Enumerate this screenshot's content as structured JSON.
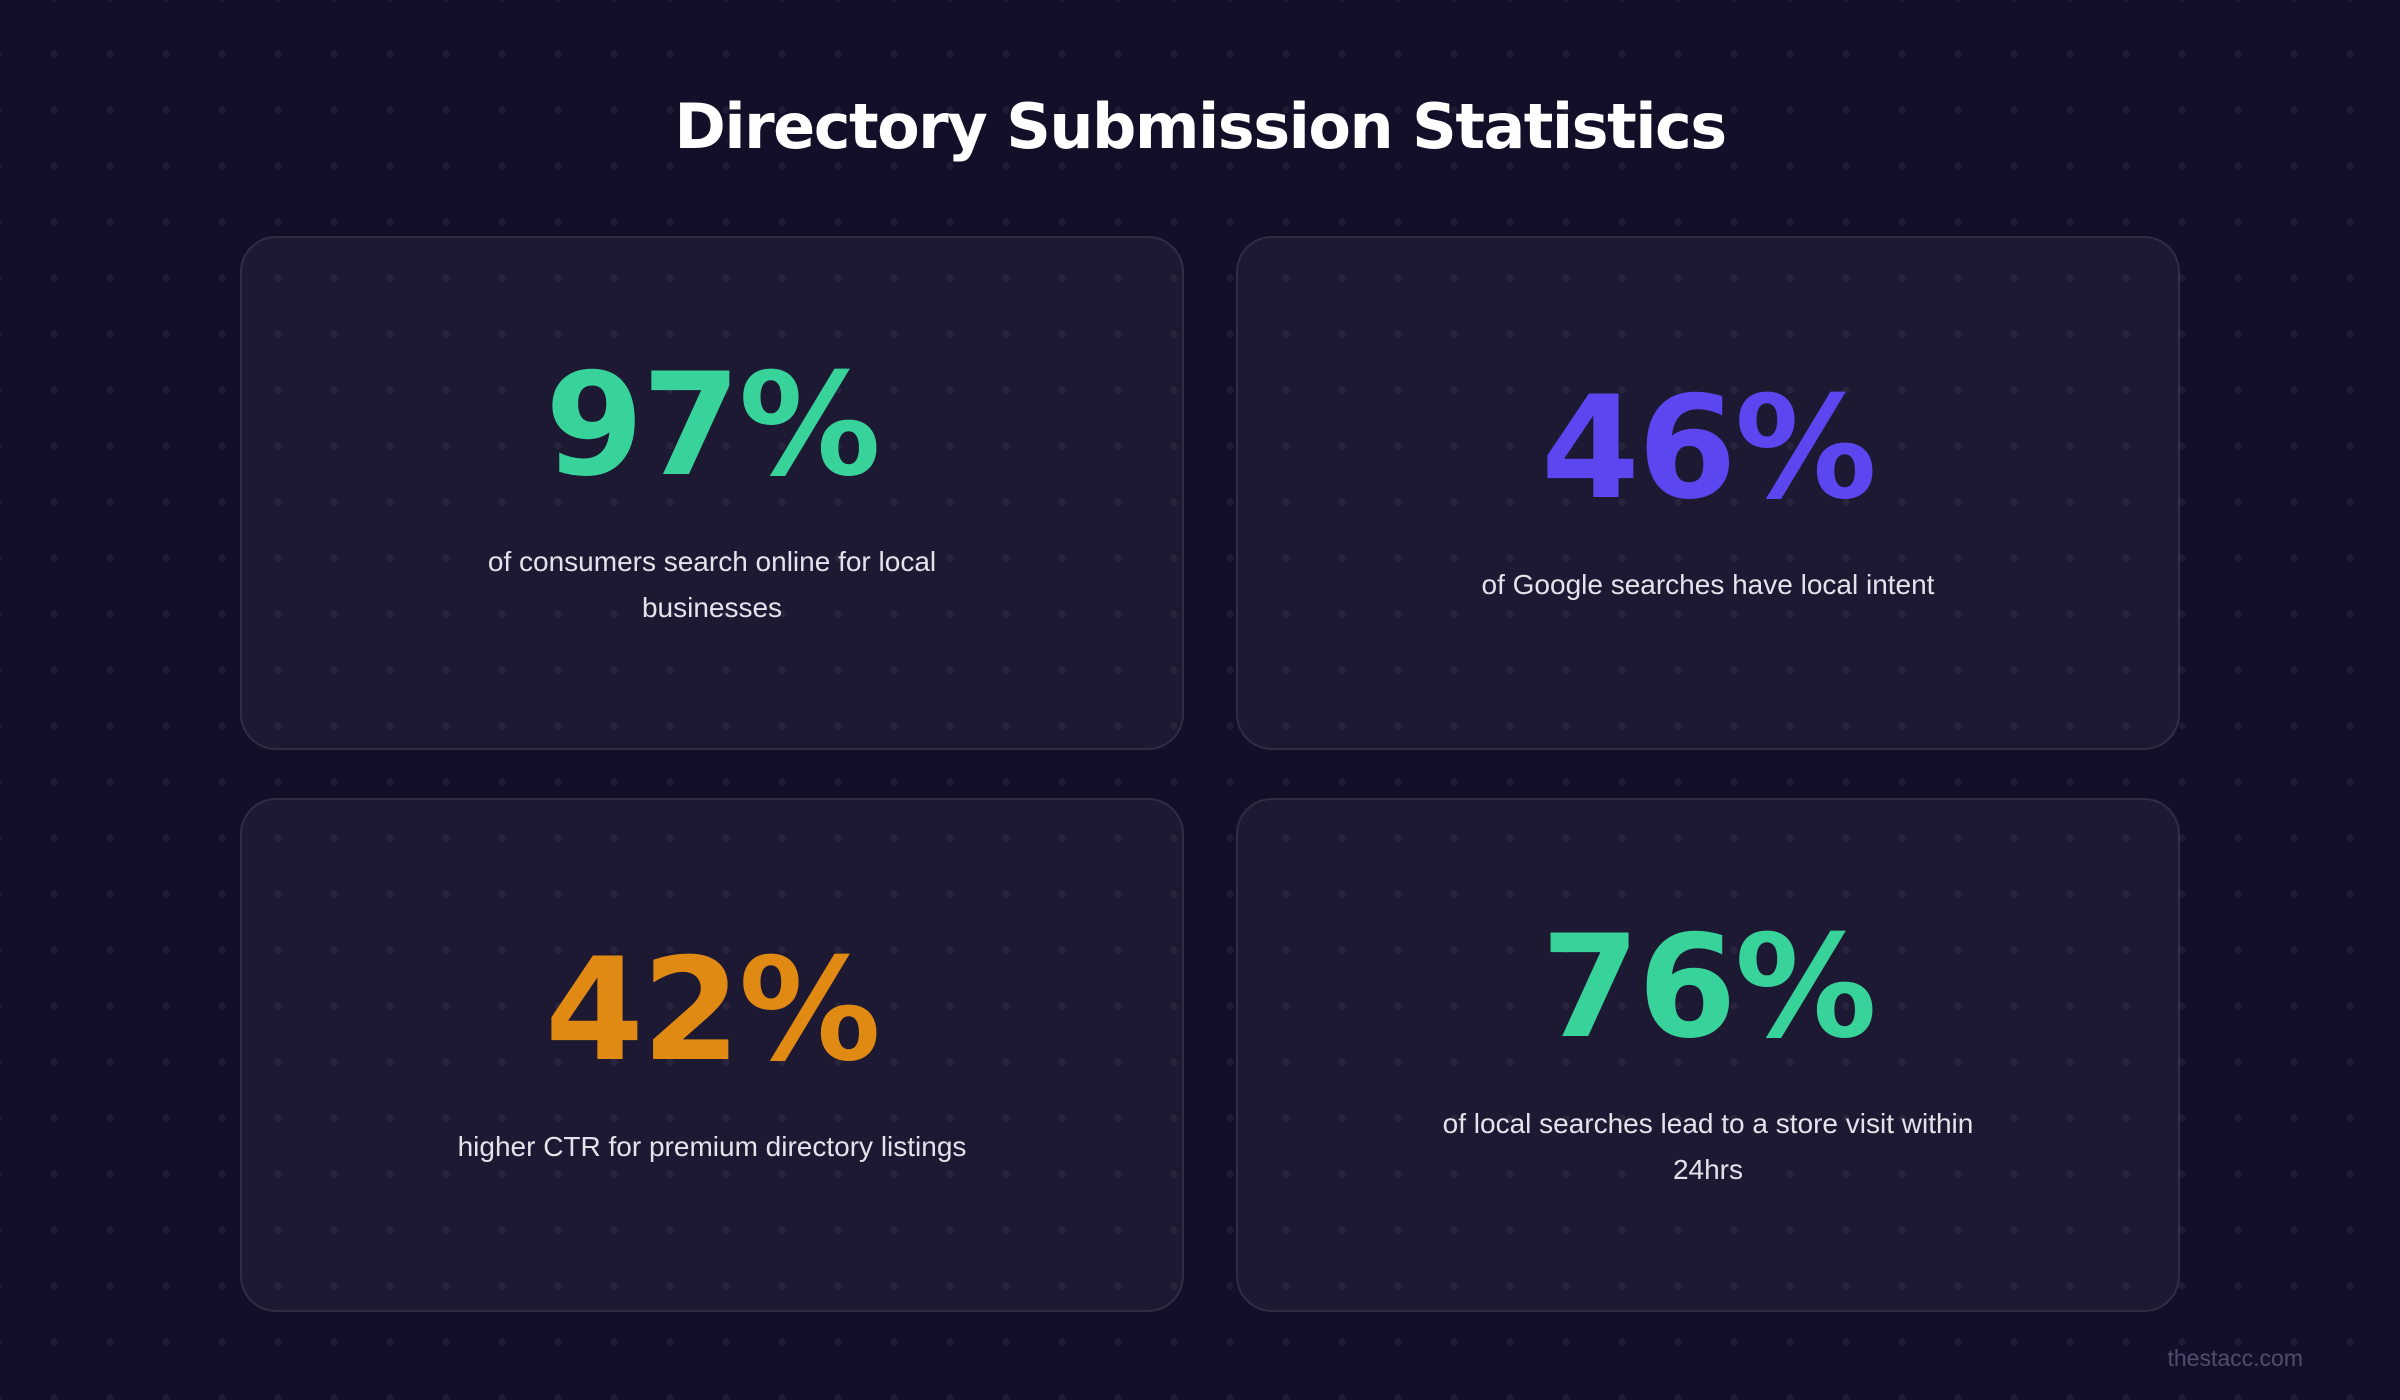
{
  "page": {
    "title": "Directory Submission Statistics",
    "footer": "thestacc.com"
  },
  "colors": {
    "background": "#130f29",
    "card_background": "#1f1a39",
    "card_border": "#322c50",
    "green": "#38d39b",
    "violet": "#5b46ef",
    "orange": "#e08a14",
    "label_text": "#e4e2ea",
    "title_text": "#ffffff",
    "footer_text": "#524c6c"
  },
  "stats": [
    {
      "value": "97%",
      "label": "of consumers search online for local businesses",
      "color": "#38d39b"
    },
    {
      "value": "46%",
      "label": "of Google searches have local intent",
      "color": "#5b46ef"
    },
    {
      "value": "42%",
      "label": "higher CTR for premium directory listings",
      "color": "#e08a14"
    },
    {
      "value": "76%",
      "label": "of local searches lead to a store visit within 24hrs",
      "color": "#38d39b"
    }
  ]
}
